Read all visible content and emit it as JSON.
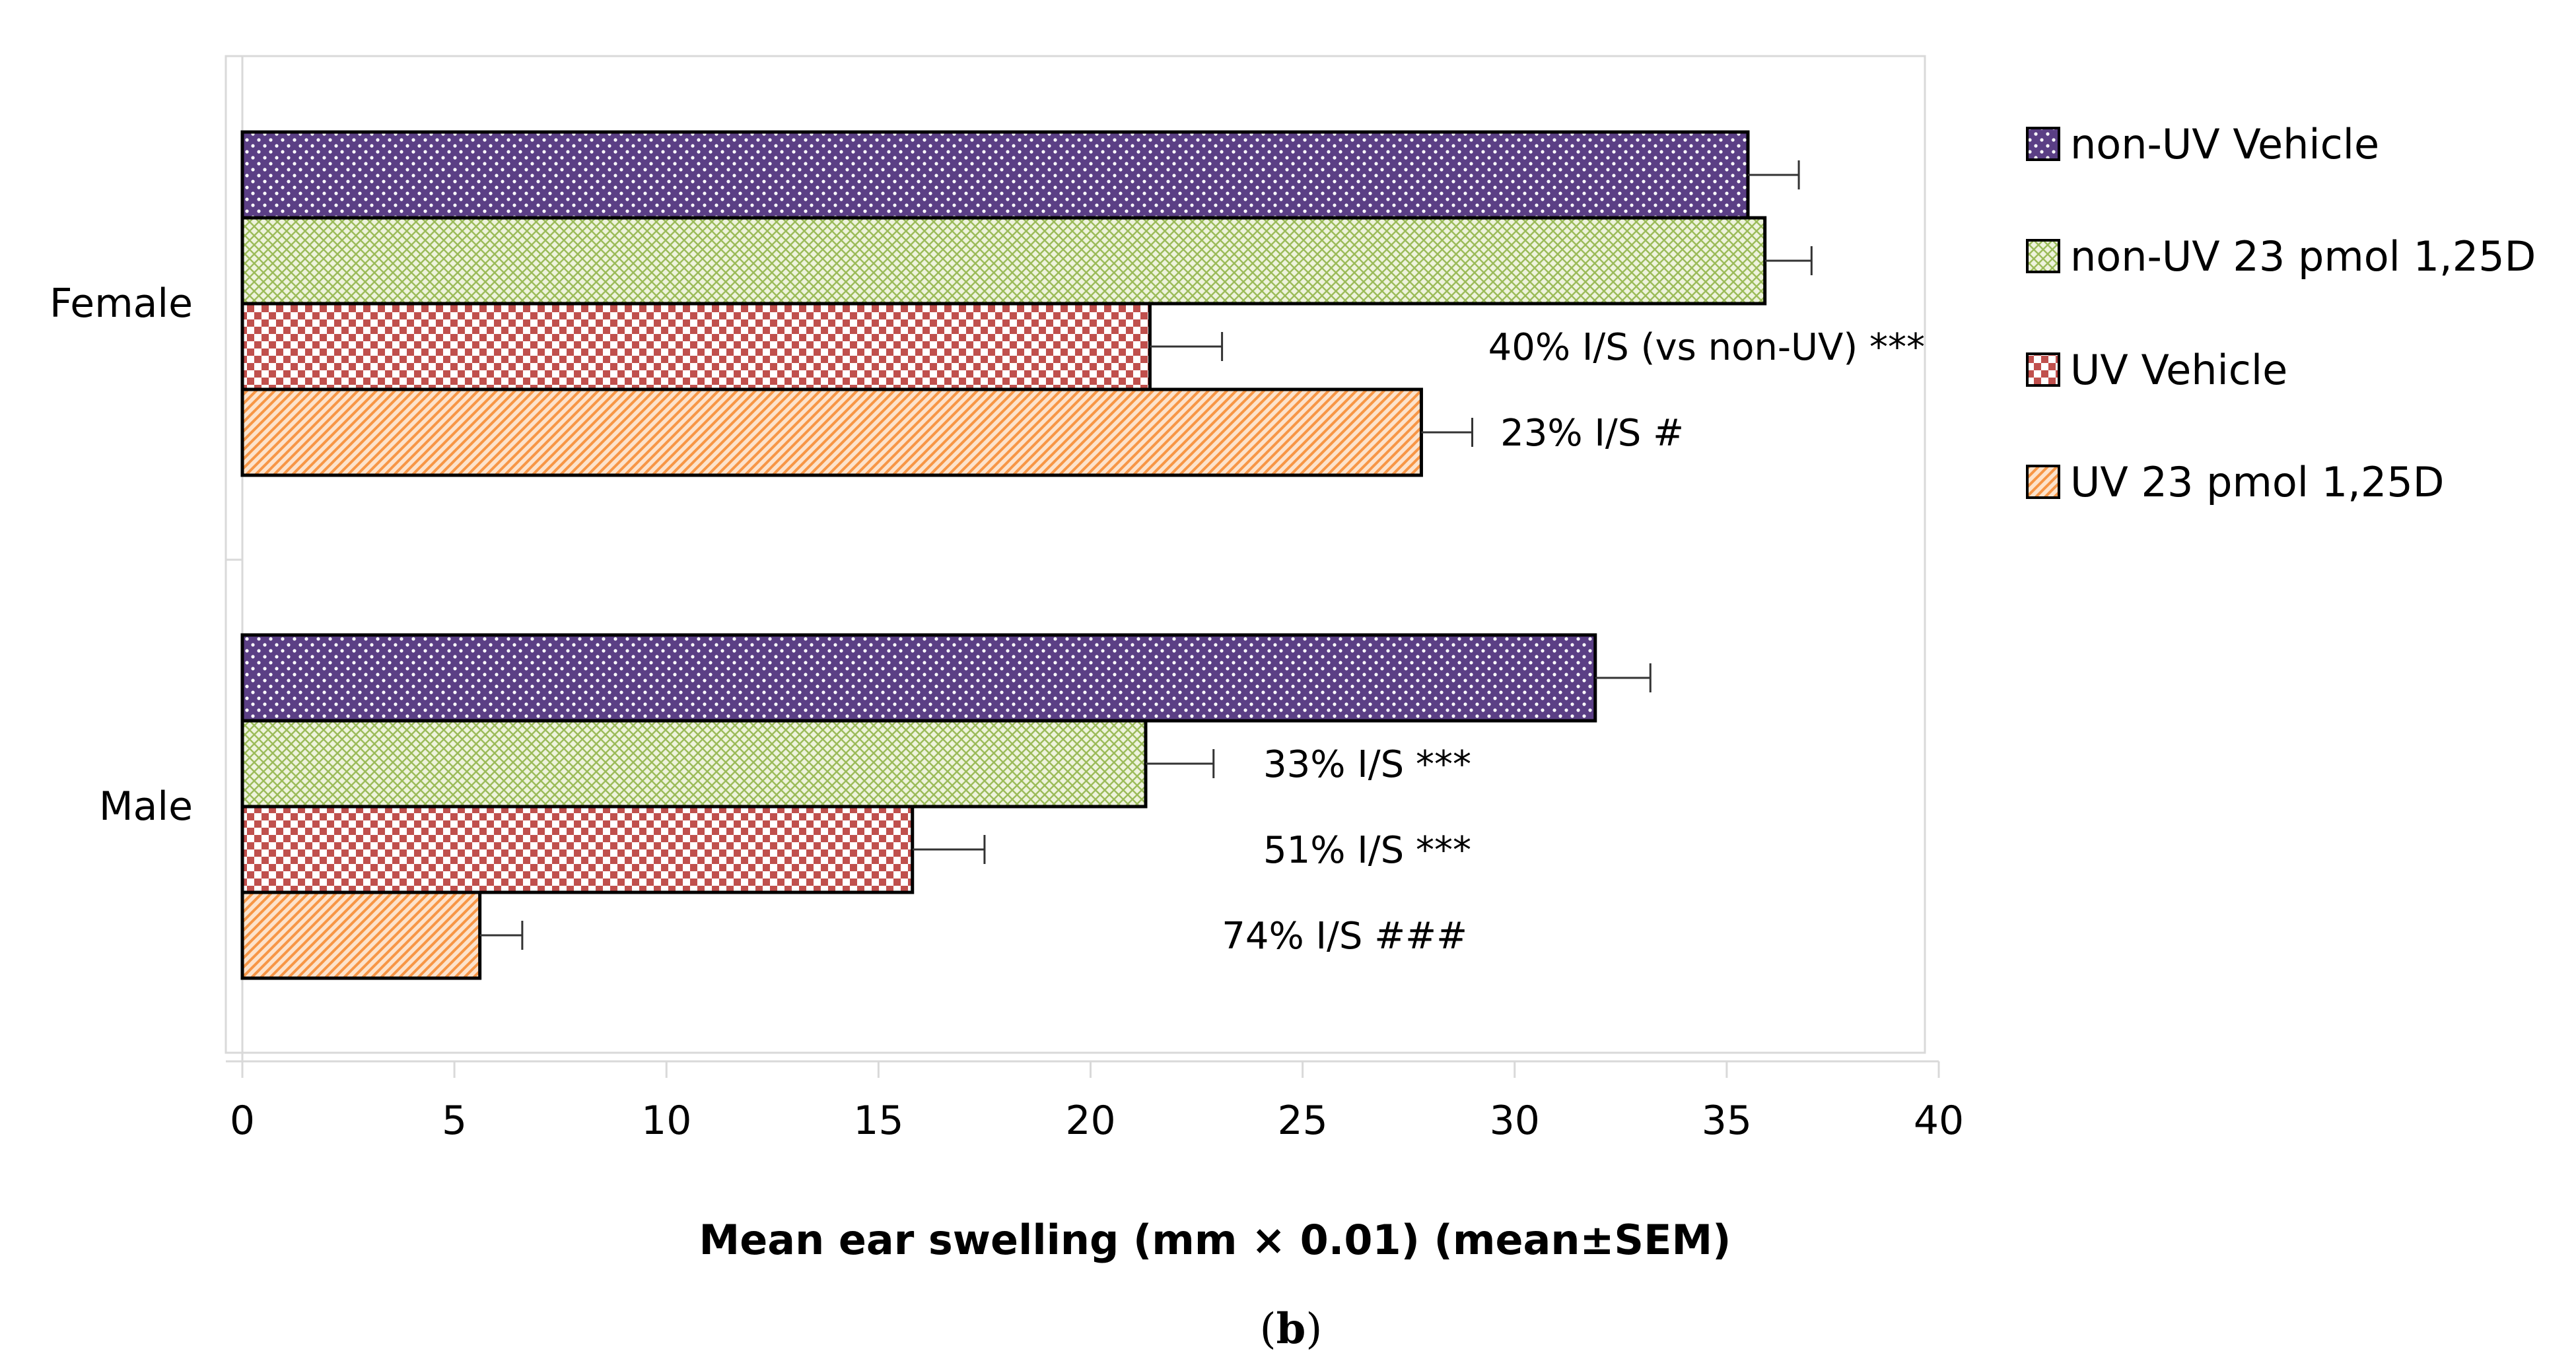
{
  "chart_data": {
    "type": "bar",
    "orientation": "horizontal",
    "title": "",
    "xlabel": "Mean ear swelling (mm × 0.01) (mean±SEM)",
    "ylabel": "",
    "xlim": [
      0,
      40
    ],
    "xticks": [
      0,
      5,
      10,
      15,
      20,
      25,
      30,
      35,
      40
    ],
    "categories": [
      "Female",
      "Male"
    ],
    "series": [
      {
        "name": "non-UV Vehicle",
        "values": [
          35.5,
          31.9
        ],
        "errors": [
          1.2,
          1.3
        ],
        "color": "#5b3f85",
        "pattern": "dots"
      },
      {
        "name": "non-UV 23 pmol 1,25D",
        "values": [
          35.9,
          21.3
        ],
        "errors": [
          1.1,
          1.6
        ],
        "color": "#9bbb59",
        "pattern": "crosshatch"
      },
      {
        "name": "UV Vehicle",
        "values": [
          21.4,
          15.8
        ],
        "errors": [
          1.7,
          1.7
        ],
        "color": "#c0504d",
        "pattern": "checker"
      },
      {
        "name": "UV 23 pmol 1,25D",
        "values": [
          27.8,
          5.6
        ],
        "errors": [
          1.2,
          1.0
        ],
        "color": "#f79646",
        "pattern": "diagonal"
      }
    ],
    "annotations": [
      {
        "category": "Female",
        "series": 2,
        "text": "40% I/S (vs non-UV) ***"
      },
      {
        "category": "Female",
        "series": 3,
        "text": "23% I/S #"
      },
      {
        "category": "Male",
        "series": 1,
        "text": "33% I/S ***"
      },
      {
        "category": "Male",
        "series": 2,
        "text": "51% I/S ***"
      },
      {
        "category": "Male",
        "series": 3,
        "text": "74% I/S ###"
      }
    ],
    "legend": "right",
    "grid": false
  },
  "caption": {
    "open": "(",
    "letter": "b",
    "close": ")"
  }
}
